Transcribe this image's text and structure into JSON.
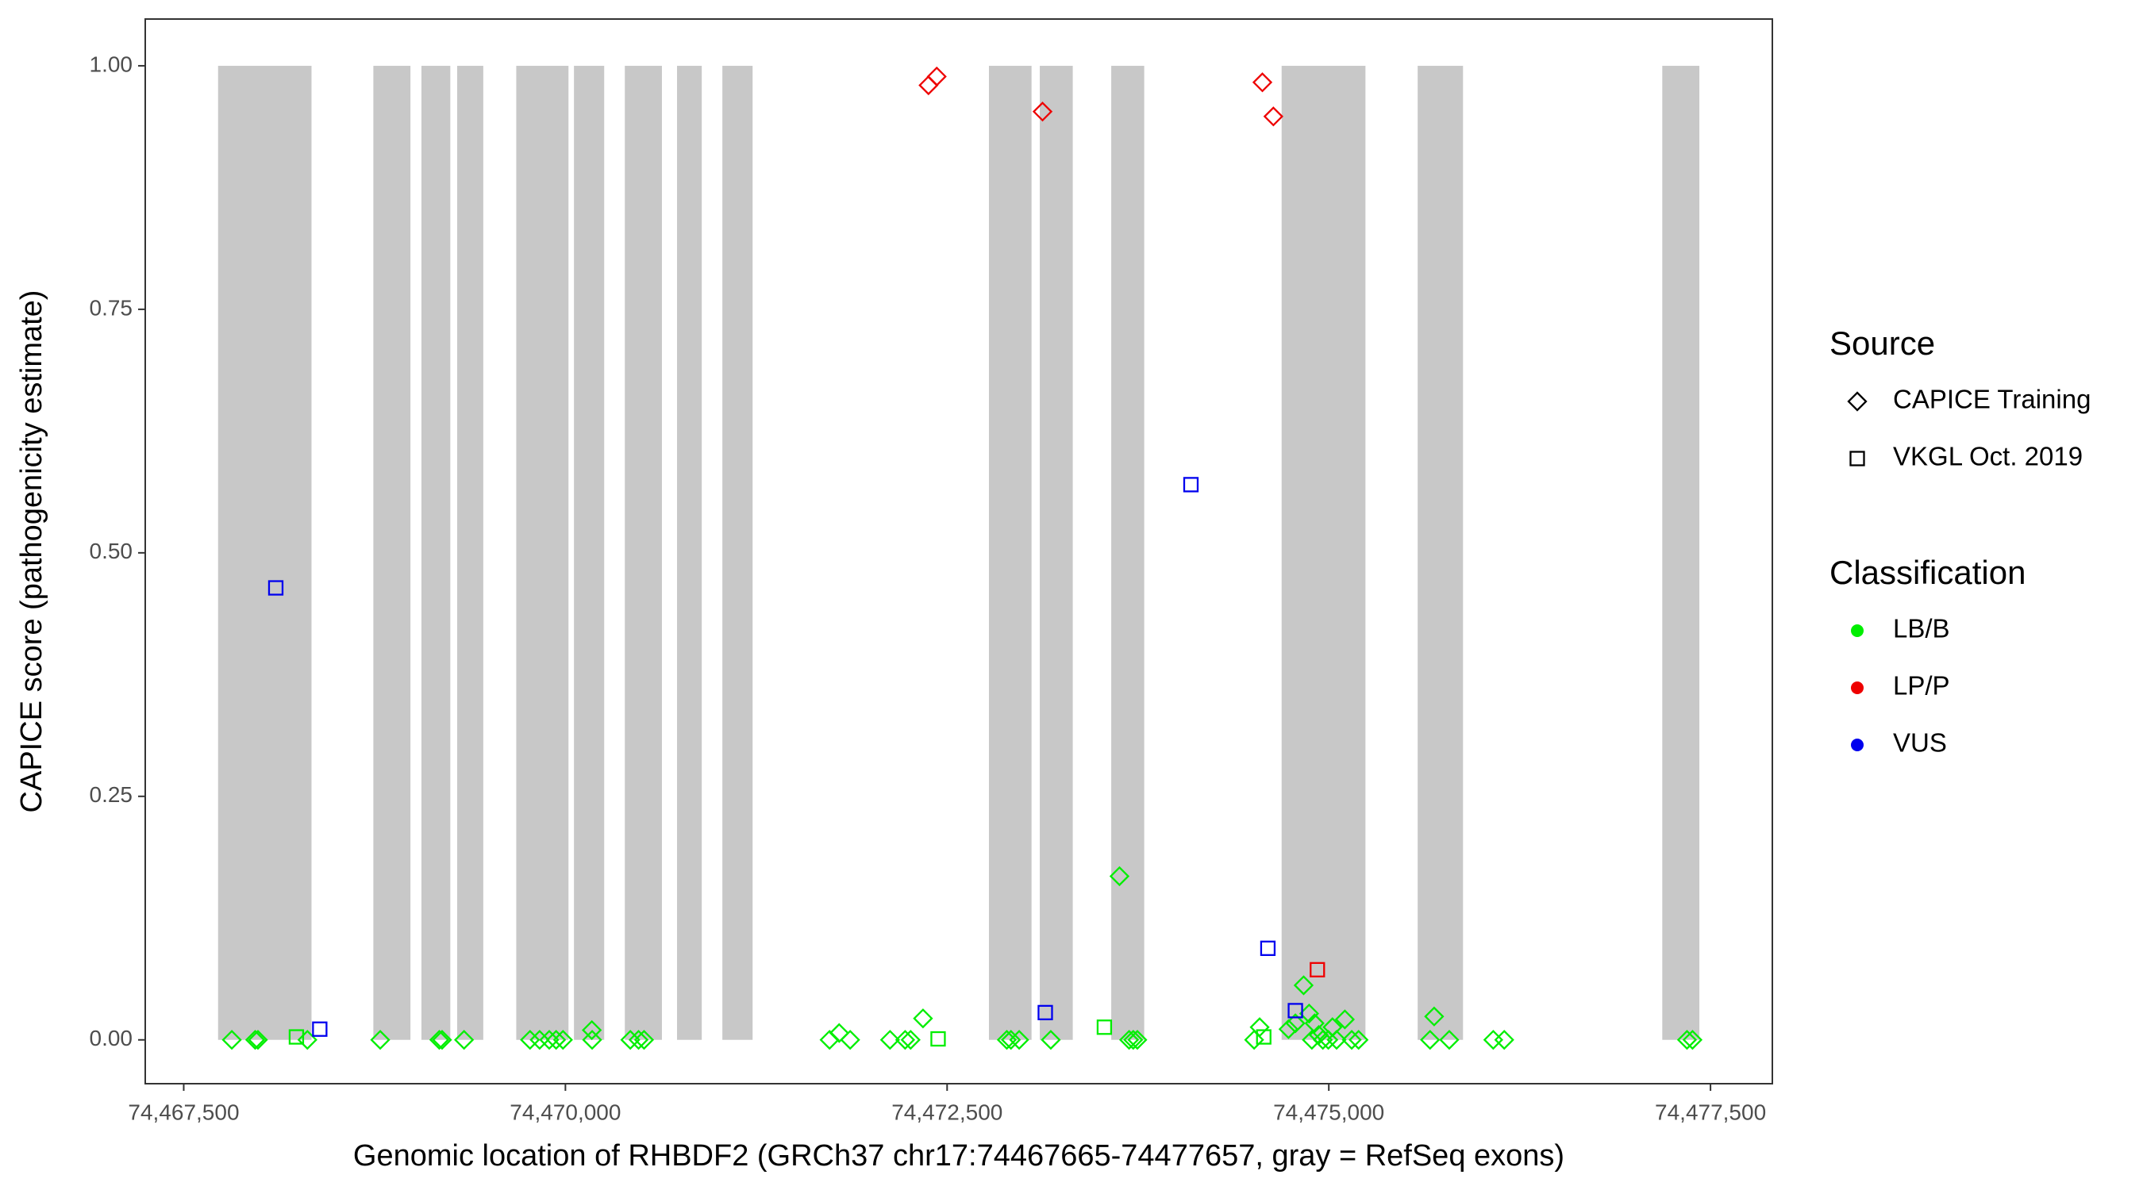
{
  "chart_data": {
    "type": "scatter",
    "x_label": "Genomic location of RHBDF2 (GRCh37 chr17:74467665-74477657, gray = RefSeq exons)",
    "y_label": "CAPICE score (pathogenicity estimate)",
    "xlim": [
      74467248,
      74477905
    ],
    "ylim": [
      -0.045,
      1.048
    ],
    "xticks": [
      {
        "value": 74467500,
        "label": "74,467,500"
      },
      {
        "value": 74470000,
        "label": "74,470,000"
      },
      {
        "value": 74472500,
        "label": "74,472,500"
      },
      {
        "value": 74475000,
        "label": "74,475,000"
      },
      {
        "value": 74477500,
        "label": "74,477,500"
      }
    ],
    "yticks": [
      {
        "value": 0,
        "label": "0.00"
      },
      0.25,
      {
        "value": 0.5,
        "label": "0.50"
      },
      0.75,
      {
        "value": 1,
        "label": "1.00"
      }
    ],
    "exons": {
      "color": "#c8c8c8",
      "ymin": 0,
      "ymax": 1,
      "ranges": [
        [
          74467725,
          74468337
        ],
        [
          74468742,
          74468985
        ],
        [
          74469057,
          74469246
        ],
        [
          74469291,
          74469462
        ],
        [
          74469678,
          74470020
        ],
        [
          74470056,
          74470254
        ],
        [
          74470389,
          74470632
        ],
        [
          74470731,
          74470893
        ],
        [
          74471028,
          74471226
        ],
        [
          74472774,
          74473053
        ],
        [
          74473107,
          74473323
        ],
        [
          74473575,
          74473791
        ],
        [
          74474691,
          74475240
        ],
        [
          74475582,
          74475879
        ],
        [
          74477184,
          74477427
        ]
      ]
    },
    "legends": [
      {
        "title": "Source",
        "items": [
          {
            "label": "CAPICE Training",
            "shape": "diamond"
          },
          {
            "label": "VKGL Oct. 2019",
            "shape": "square"
          }
        ]
      },
      {
        "title": "Classification",
        "items": [
          {
            "label": "LB/B",
            "color": "#00ee00"
          },
          {
            "label": "LP/P",
            "color": "#ee0000"
          },
          {
            "label": "VUS",
            "color": "#0000ee"
          }
        ]
      }
    ],
    "series": [
      {
        "source": "CAPICE Training",
        "classification": "LB/B",
        "x": [
          74467815,
          74467968,
          74467986,
          74468310,
          74468787,
          74469174,
          74469192,
          74469336,
          74469768,
          74469831,
          74469894,
          74469939,
          74469984,
          74470173,
          74470175,
          74470425,
          74470479,
          74470515,
          74471730,
          74471793,
          74471865,
          74472126,
          74472225,
          74472261,
          74472342,
          74472891,
          74472918,
          74472972,
          74473179,
          74473629,
          74473692,
          74473719,
          74473746,
          74474511,
          74474547,
          74474736,
          74474781,
          74474835,
          74474871,
          74474889,
          74474907,
          74474934,
          74474961,
          74474997,
          74475024,
          74475051,
          74475105,
          74475150,
          74475195,
          74475663,
          74475690,
          74475789,
          74476077,
          74476149,
          74477346,
          74477382
        ],
        "y": [
          0,
          0,
          0,
          0,
          0,
          0,
          0,
          0,
          0,
          0,
          0,
          0,
          0,
          0.01,
          0,
          0,
          0,
          0,
          0,
          0.007,
          0,
          0,
          0,
          0,
          0.022,
          0,
          0,
          0,
          0,
          0.168,
          0,
          0,
          0,
          0,
          0.013,
          0.011,
          0.017,
          0.056,
          0.027,
          0,
          0.017,
          0.005,
          0,
          0,
          0.013,
          0,
          0.021,
          0,
          0,
          0,
          0.024,
          0,
          0,
          0,
          0,
          0
        ]
      },
      {
        "source": "VKGL Oct. 2019",
        "classification": "LB/B",
        "x": [
          74468238,
          74472441,
          74473530,
          74474574
        ],
        "y": [
          0.003,
          0.001,
          0.013,
          0.003
        ]
      },
      {
        "source": "CAPICE Training",
        "classification": "LP/P",
        "x": [
          74472378,
          74472432,
          74473125,
          74474565,
          74474637
        ],
        "y": [
          0.98,
          0.989,
          0.953,
          0.983,
          0.948
        ]
      },
      {
        "source": "VKGL Oct. 2019",
        "classification": "LP/P",
        "x": [
          74474925
        ],
        "y": [
          0.072
        ]
      },
      {
        "source": "VKGL Oct. 2019",
        "classification": "VUS",
        "x": [
          74468103,
          74468391,
          74474097,
          74473143,
          74474601,
          74474781
        ],
        "y": [
          0.464,
          0.011,
          0.57,
          0.028,
          0.094,
          0.03
        ]
      }
    ]
  }
}
